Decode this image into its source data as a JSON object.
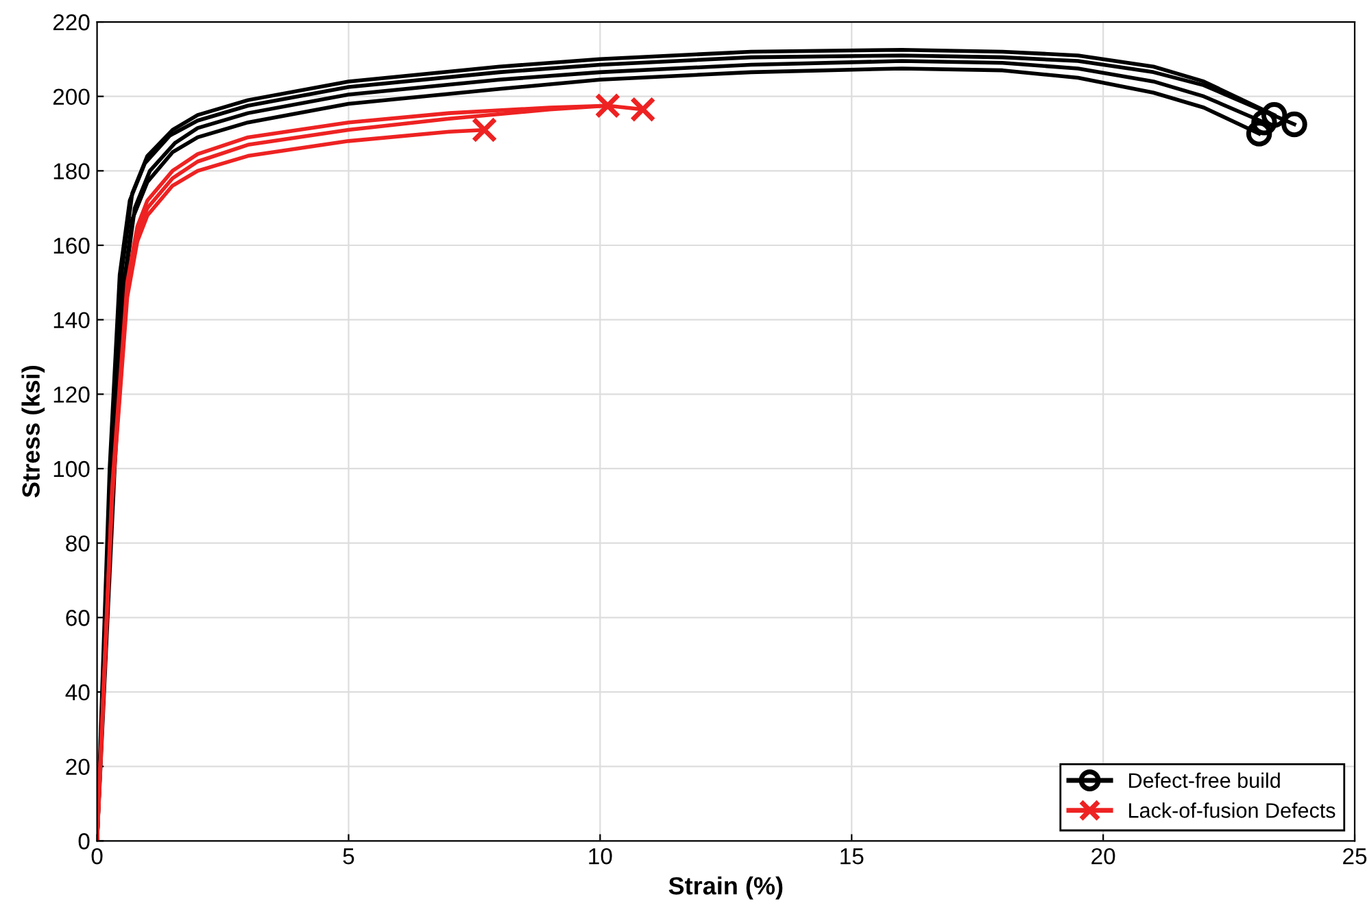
{
  "chart_data": {
    "type": "line",
    "xlabel": "Strain (%)",
    "ylabel": "Stress (ksi)",
    "xlim": [
      0,
      25
    ],
    "xticks": [
      0,
      5,
      10,
      15,
      20,
      25
    ],
    "ylim": [
      0,
      220
    ],
    "yticks": [
      0,
      20,
      40,
      60,
      80,
      100,
      120,
      140,
      160,
      180,
      200,
      220
    ],
    "grid": true,
    "legend": "bottom right",
    "series": [
      {
        "color": "#000000",
        "x": [
          0,
          0.3,
          0.5,
          0.7,
          1.0,
          1.5,
          2,
          3,
          5,
          8,
          10,
          13,
          16,
          18,
          19.5,
          21,
          22,
          23.1
        ],
        "values": [
          0,
          96,
          146,
          167,
          177,
          185,
          189,
          193,
          198,
          202,
          204.5,
          206.5,
          207.5,
          207,
          205,
          201,
          197,
          190
        ]
      },
      {
        "color": "#000000",
        "x": [
          0,
          0.35,
          0.55,
          0.75,
          1.05,
          1.55,
          2,
          3,
          5,
          8,
          10,
          13,
          16,
          18,
          19.5,
          21,
          22,
          23.2
        ],
        "values": [
          0,
          100,
          150,
          170,
          180,
          187.5,
          191.5,
          195.5,
          200.5,
          204.5,
          206.5,
          208.5,
          209.5,
          209,
          207.5,
          204,
          200,
          193
        ]
      },
      {
        "color": "#000000",
        "x": [
          0,
          0.3,
          0.5,
          0.7,
          1.0,
          1.5,
          2,
          3,
          5,
          8,
          10,
          13,
          16,
          18,
          19.5,
          21,
          22,
          23.4
        ],
        "values": [
          0,
          104,
          154,
          174,
          184,
          191,
          195,
          199,
          204,
          208,
          210,
          212,
          212.5,
          212,
          211,
          208,
          204,
          195
        ]
      },
      {
        "color": "#000000",
        "x": [
          0,
          0.25,
          0.45,
          0.65,
          0.95,
          1.45,
          2,
          3,
          5,
          8,
          10,
          13,
          16,
          18,
          19.5,
          21,
          22,
          23.8
        ],
        "values": [
          0,
          100,
          152,
          172,
          182,
          189.5,
          193.5,
          197.5,
          202.5,
          206.5,
          208.5,
          210.5,
          211,
          210.5,
          209.5,
          206.5,
          203,
          192.5
        ]
      },
      {
        "color": "#ee2222",
        "x": [
          0,
          0.3,
          0.6,
          0.8,
          1.0,
          1.5,
          2,
          3,
          5,
          7,
          9,
          10.15,
          10.85
        ],
        "values": [
          0,
          95,
          150,
          165,
          172,
          180,
          184.5,
          189,
          193,
          195.5,
          197,
          197.5,
          196.5
        ]
      },
      {
        "color": "#ee2222",
        "x": [
          0,
          0.3,
          0.6,
          0.8,
          1.0,
          1.5,
          2,
          3,
          5,
          7,
          9,
          10.15
        ],
        "values": [
          0,
          93,
          148,
          163,
          170,
          178,
          182.5,
          187,
          191,
          194,
          196.5,
          197.5
        ]
      },
      {
        "color": "#ee2222",
        "x": [
          0,
          0.3,
          0.6,
          0.8,
          1.0,
          1.5,
          2,
          3,
          5,
          7,
          7.7
        ],
        "values": [
          0,
          92,
          146,
          161,
          168,
          176,
          180,
          184,
          188,
          190.5,
          191
        ]
      },
      {
        "type": "scatter",
        "name": "Defect-free build",
        "marker": "circle",
        "color": "#000000",
        "x": [
          23.1,
          23.2,
          23.4,
          23.8
        ],
        "values": [
          190,
          193,
          195,
          192.5
        ]
      },
      {
        "type": "scatter",
        "name": "Lack-of-fusion Defects",
        "marker": "cross",
        "color": "#ee2222",
        "x": [
          10.15,
          10.85,
          7.7
        ],
        "values": [
          197.5,
          196.5,
          191
        ]
      }
    ]
  }
}
